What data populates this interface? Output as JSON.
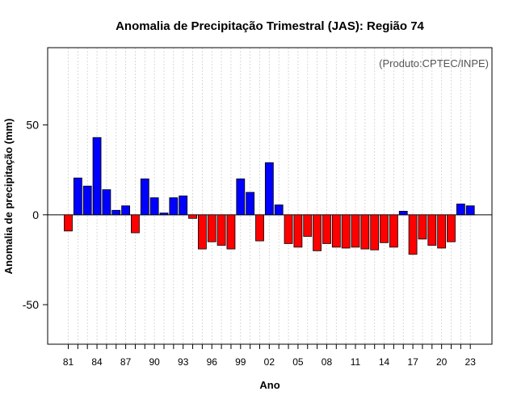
{
  "chart_data": {
    "type": "bar",
    "title": "Anomalia de Precipitação Trimestral (JAS): Região 74",
    "xlabel": "Ano",
    "ylabel": "Anomalia de precipitação (mm)",
    "credit": "(Produto:CPTEC/INPE)",
    "ylim": [
      -72,
      93
    ],
    "yticks": [
      -50,
      0,
      50
    ],
    "xtick_labels": [
      "81",
      "84",
      "87",
      "90",
      "93",
      "96",
      "99",
      "02",
      "05",
      "08",
      "11",
      "14",
      "17",
      "20",
      "23"
    ],
    "categories": [
      "1981",
      "1982",
      "1983",
      "1984",
      "1985",
      "1986",
      "1987",
      "1988",
      "1989",
      "1990",
      "1991",
      "1992",
      "1993",
      "1994",
      "1995",
      "1996",
      "1997",
      "1998",
      "1999",
      "2000",
      "2001",
      "2002",
      "2003",
      "2004",
      "2005",
      "2006",
      "2007",
      "2008",
      "2009",
      "2010",
      "2011",
      "2012",
      "2013",
      "2014",
      "2015",
      "2016",
      "2017",
      "2018",
      "2019",
      "2020",
      "2021",
      "2022",
      "2023"
    ],
    "values": [
      -9,
      20.5,
      16,
      43,
      14,
      2.5,
      5,
      -10,
      20,
      9.5,
      1,
      9.5,
      10.5,
      -2,
      -19,
      -15,
      -17,
      -19,
      20,
      12.5,
      -14.5,
      29,
      5.5,
      -16,
      -18,
      -12,
      -20,
      -16,
      -18,
      -18.5,
      -18,
      -19,
      -19.5,
      -15.5,
      -18,
      2,
      -22,
      -13.5,
      -17,
      -18.5,
      -15,
      6,
      5
    ],
    "colors": {
      "positive": "#0000ff",
      "negative": "#ff0000",
      "outline": "#000000"
    }
  }
}
